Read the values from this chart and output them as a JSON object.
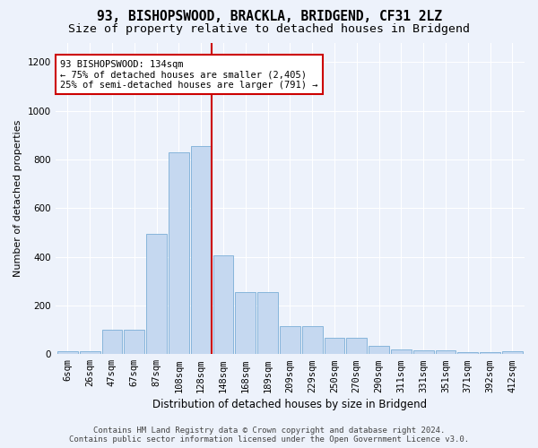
{
  "title": "93, BISHOPSWOOD, BRACKLA, BRIDGEND, CF31 2LZ",
  "subtitle": "Size of property relative to detached houses in Bridgend",
  "xlabel": "Distribution of detached houses by size in Bridgend",
  "ylabel": "Number of detached properties",
  "footer_line1": "Contains HM Land Registry data © Crown copyright and database right 2024.",
  "footer_line2": "Contains public sector information licensed under the Open Government Licence v3.0.",
  "categories": [
    "6sqm",
    "26sqm",
    "47sqm",
    "67sqm",
    "87sqm",
    "108sqm",
    "128sqm",
    "148sqm",
    "168sqm",
    "189sqm",
    "209sqm",
    "229sqm",
    "250sqm",
    "270sqm",
    "290sqm",
    "311sqm",
    "331sqm",
    "351sqm",
    "371sqm",
    "392sqm",
    "412sqm"
  ],
  "values": [
    10,
    12,
    100,
    100,
    495,
    830,
    855,
    405,
    255,
    255,
    115,
    115,
    68,
    68,
    33,
    20,
    15,
    15,
    8,
    8,
    10
  ],
  "bar_color": "#c5d8f0",
  "bar_edge_color": "#7aaed6",
  "annotation_line1": "93 BISHOPSWOOD: 134sqm",
  "annotation_line2": "← 75% of detached houses are smaller (2,405)",
  "annotation_line3": "25% of semi-detached houses are larger (791) →",
  "annotation_box_facecolor": "#ffffff",
  "annotation_box_edgecolor": "#cc0000",
  "vline_index": 6,
  "vline_color": "#cc0000",
  "ylim_min": 0,
  "ylim_max": 1280,
  "yticks": [
    0,
    200,
    400,
    600,
    800,
    1000,
    1200
  ],
  "bg_color": "#edf2fb",
  "grid_color": "#ffffff",
  "title_fontsize": 10.5,
  "subtitle_fontsize": 9.5,
  "xlabel_fontsize": 8.5,
  "ylabel_fontsize": 8.0,
  "tick_fontsize": 7.5,
  "annotation_fontsize": 7.5,
  "footer_fontsize": 6.5,
  "bar_width": 0.92
}
